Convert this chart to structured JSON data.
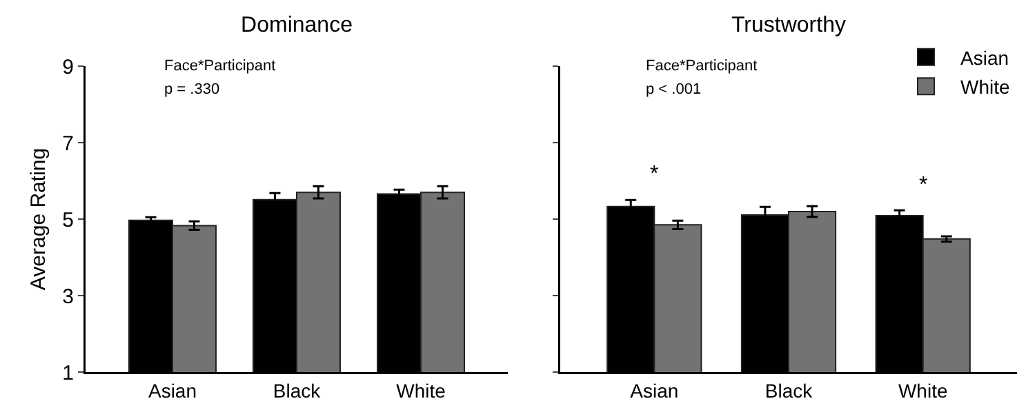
{
  "chart_data": [
    {
      "type": "bar",
      "title": "Dominance",
      "ylabel": "Average Rating",
      "categories": [
        "Asian",
        "Black",
        "White"
      ],
      "series": [
        {
          "color": "#000000",
          "values": [
            4.97,
            5.51,
            5.66
          ],
          "errors": [
            0.08,
            0.17,
            0.11
          ]
        },
        {
          "color": "#737373",
          "values": [
            4.83,
            5.7,
            5.7
          ],
          "errors": [
            0.11,
            0.16,
            0.16
          ]
        }
      ],
      "ylim": [
        1,
        9
      ],
      "yticks": [
        1,
        3,
        5,
        7,
        9
      ],
      "grid": false,
      "legend": false,
      "annotations": [
        "Face*Participant",
        "p = .330"
      ]
    },
    {
      "type": "bar",
      "title": "Trustworthy",
      "categories": [
        "Asian",
        "Black",
        "White"
      ],
      "series": [
        {
          "name": "Asian",
          "color": "#000000",
          "values": [
            5.33,
            5.11,
            5.09
          ],
          "errors": [
            0.17,
            0.21,
            0.14
          ]
        },
        {
          "name": "White",
          "color": "#737373",
          "values": [
            4.85,
            5.2,
            4.48
          ],
          "errors": [
            0.11,
            0.14,
            0.07
          ]
        }
      ],
      "ylim": [
        1,
        9
      ],
      "yticks": [
        1,
        3,
        5,
        7,
        9
      ],
      "grid": false,
      "legend": "top right",
      "tick_labels": "x",
      "annotations": [
        "Face*Participant",
        "p < .001",
        {
          "text": "*",
          "x": "Asian",
          "y": 5.5
        },
        {
          "text": "*",
          "x": "White",
          "y": 5.23
        }
      ]
    }
  ]
}
